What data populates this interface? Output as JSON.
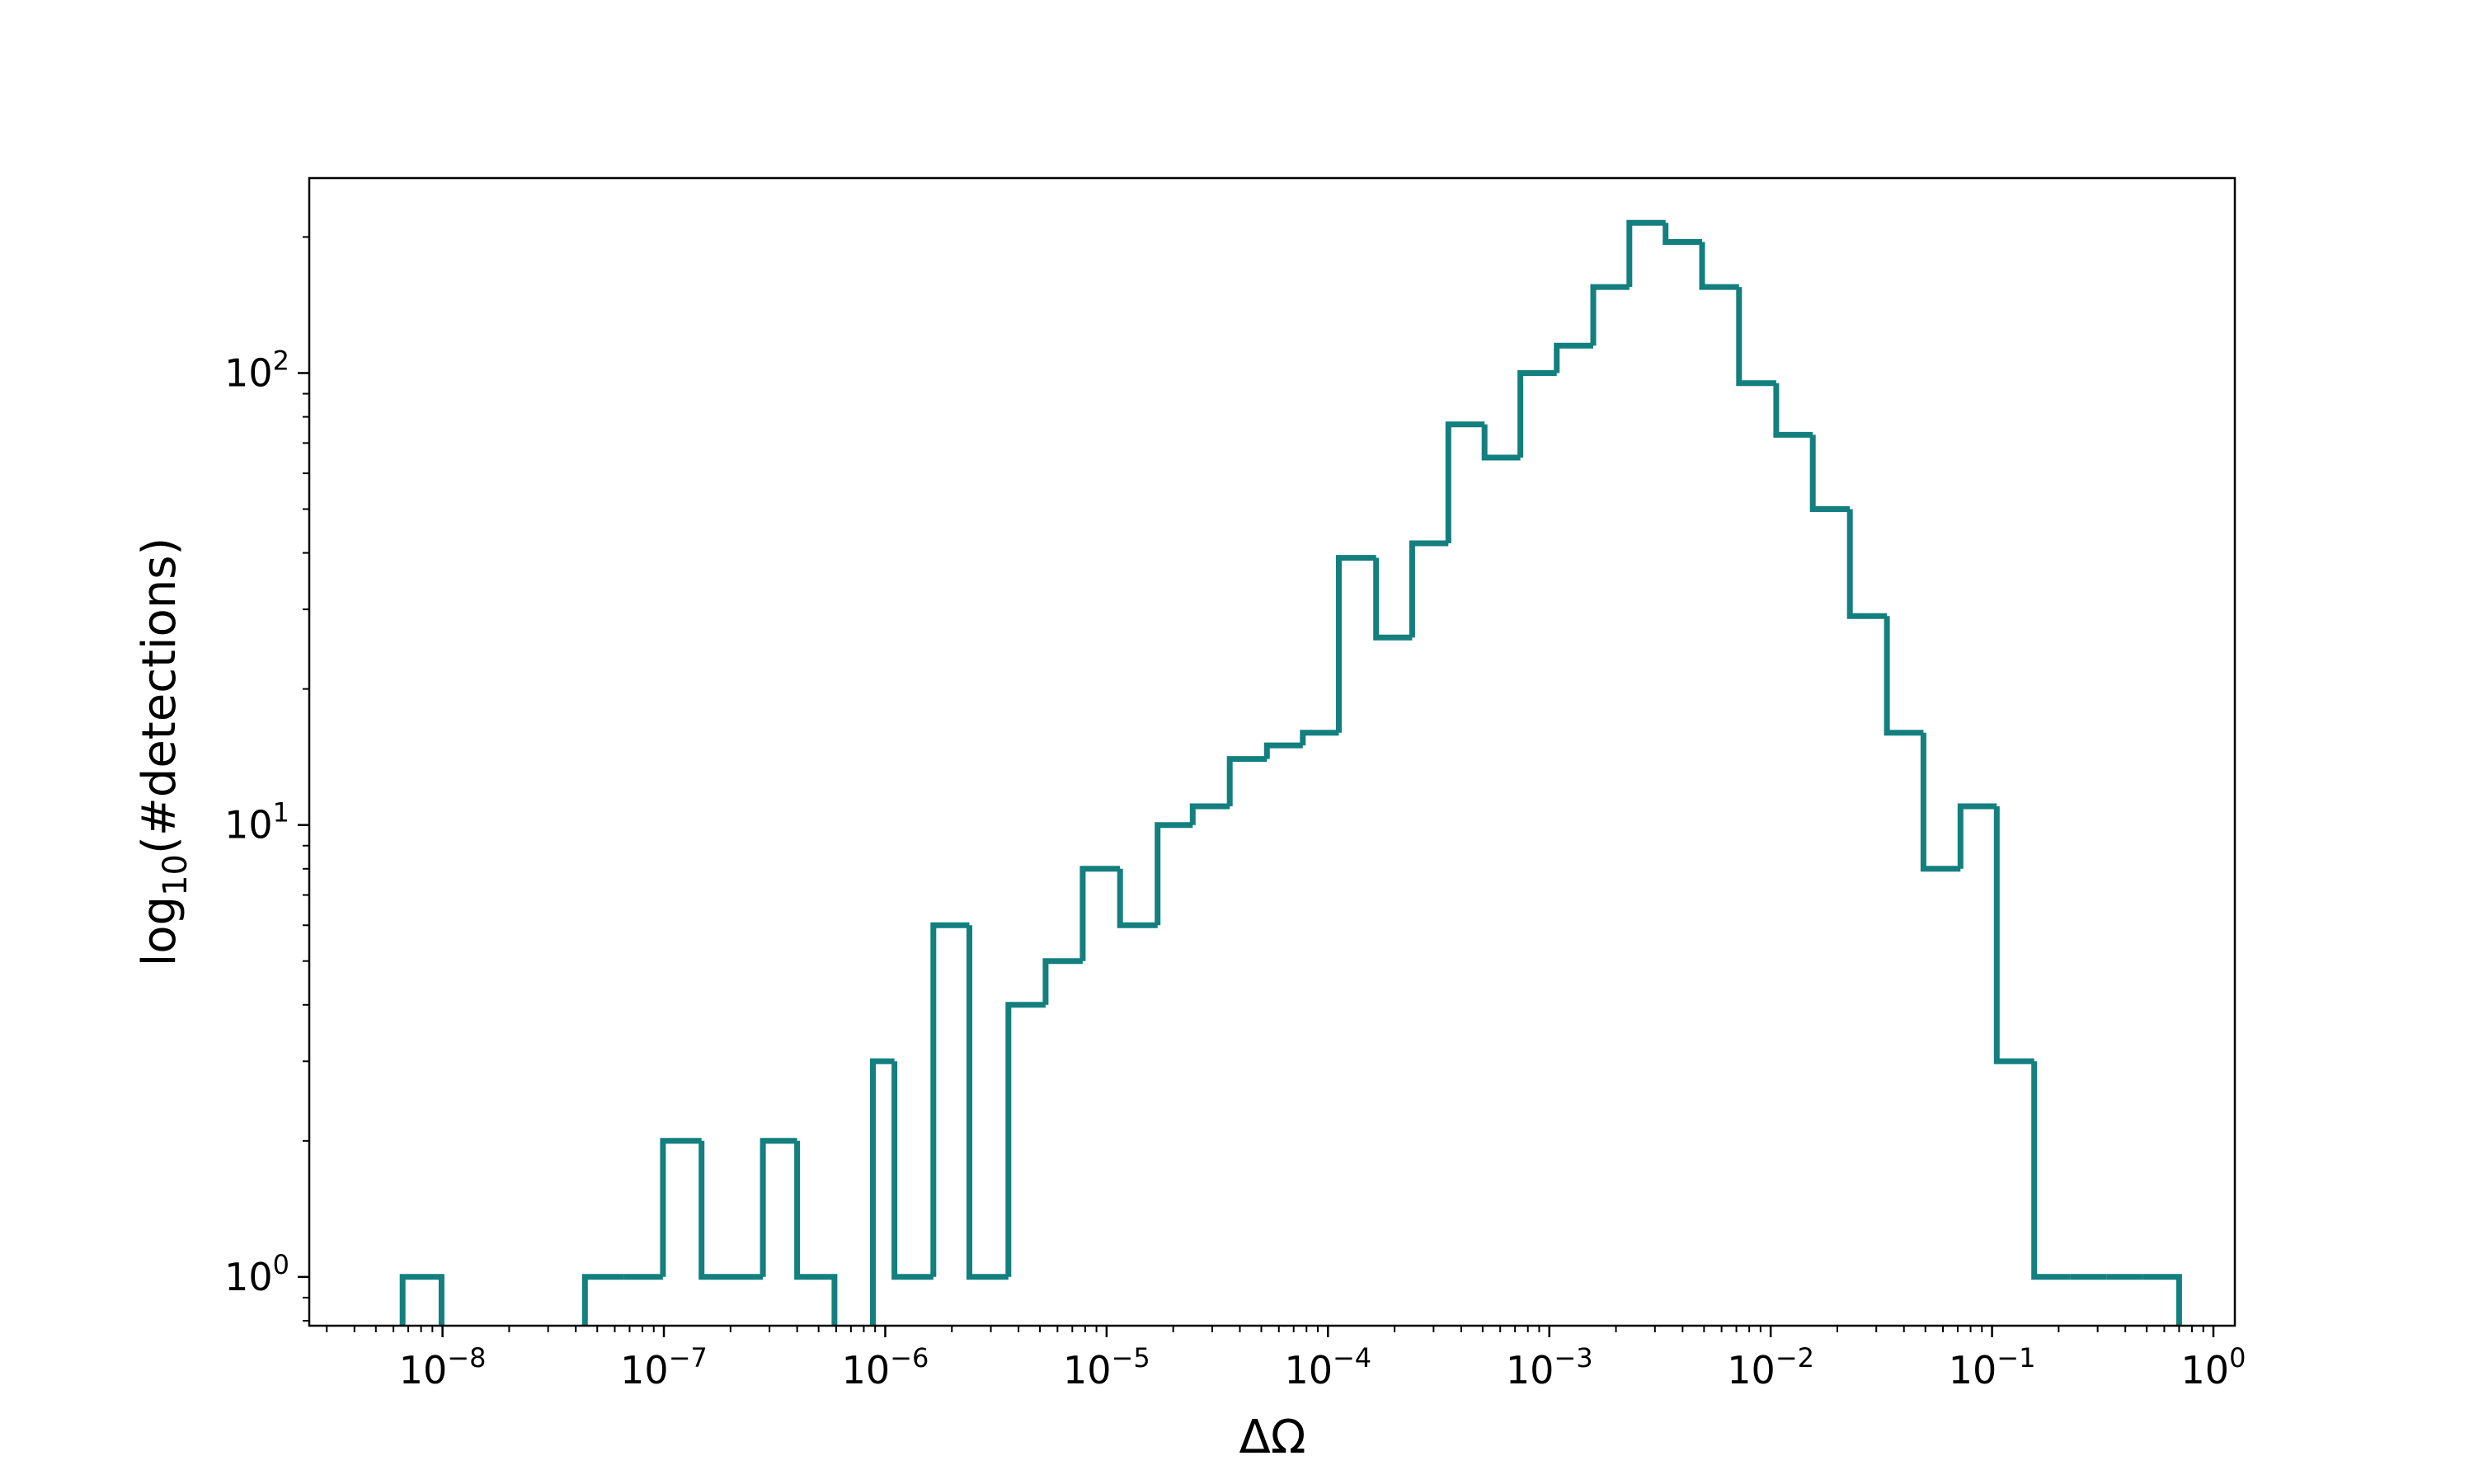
{
  "chart_data": {
    "type": "histogram",
    "title": "",
    "xlabel": "ΔΩ",
    "ylabel_main": "log",
    "ylabel_sub": "10",
    "ylabel_rest": "(#detections)",
    "x_scale": "log",
    "y_scale": "log",
    "xlim": [
      2.5e-09,
      1.25
    ],
    "ylim": [
      0.78,
      270
    ],
    "grid": false,
    "color": "#137f7f",
    "x_ticks": [
      {
        "base": "10",
        "exp": "−8",
        "value": 1e-08
      },
      {
        "base": "10",
        "exp": "−7",
        "value": 1e-07
      },
      {
        "base": "10",
        "exp": "−6",
        "value": 1e-06
      },
      {
        "base": "10",
        "exp": "−5",
        "value": 1e-05
      },
      {
        "base": "10",
        "exp": "−4",
        "value": 0.0001
      },
      {
        "base": "10",
        "exp": "−3",
        "value": 0.001
      },
      {
        "base": "10",
        "exp": "−2",
        "value": 0.01
      },
      {
        "base": "10",
        "exp": "−1",
        "value": 0.1
      },
      {
        "base": "10",
        "exp": "0",
        "value": 1
      }
    ],
    "y_ticks": [
      {
        "base": "10",
        "exp": "0",
        "value": 1
      },
      {
        "base": "10",
        "exp": "1",
        "value": 10
      },
      {
        "base": "10",
        "exp": "2",
        "value": 100
      }
    ],
    "bin_edges": [
      6.6e-09,
      9.9e-09,
      1.48e-08,
      2.22e-08,
      3.32e-08,
      4.4e-08,
      6.6e-08,
      9.9e-08,
      1.48e-07,
      2.22e-07,
      2.8e-07,
      4e-07,
      5.9e-07,
      8.8e-07,
      1.1e-06,
      1.65e-06,
      2.4e-06,
      3.6e-06,
      5.3e-06,
      7.8e-06,
      1.15e-05,
      1.7e-05,
      2.45e-05,
      3.6e-05,
      5.3e-05,
      7.7e-05,
      0.000112,
      0.000165,
      0.00024,
      0.00035,
      0.00051,
      0.00074,
      0.00108,
      0.00158,
      0.0023,
      0.00335,
      0.0049,
      0.0072,
      0.0106,
      0.0155,
      0.0228,
      0.0335,
      0.049,
      0.072,
      0.105,
      0.155,
      0.225,
      0.33,
      0.48,
      0.7
    ],
    "counts": [
      1,
      0,
      0,
      0,
      0,
      1,
      1,
      2,
      1,
      1,
      2,
      1,
      0,
      3,
      1,
      6,
      1,
      4,
      5,
      8,
      6,
      10,
      11,
      14,
      15,
      16,
      39,
      26,
      42,
      77,
      65,
      100,
      115,
      155,
      215,
      195,
      155,
      95,
      73,
      50,
      29,
      16,
      8,
      11,
      3,
      1,
      1,
      1,
      1
    ]
  }
}
